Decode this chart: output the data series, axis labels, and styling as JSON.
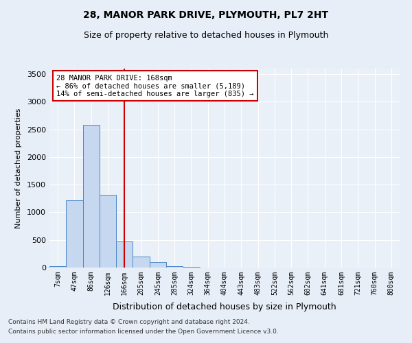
{
  "title1": "28, MANOR PARK DRIVE, PLYMOUTH, PL7 2HT",
  "title2": "Size of property relative to detached houses in Plymouth",
  "xlabel": "Distribution of detached houses by size in Plymouth",
  "ylabel": "Number of detached properties",
  "bar_labels": [
    "7sqm",
    "47sqm",
    "86sqm",
    "126sqm",
    "166sqm",
    "205sqm",
    "245sqm",
    "285sqm",
    "324sqm",
    "364sqm",
    "404sqm",
    "443sqm",
    "483sqm",
    "522sqm",
    "562sqm",
    "602sqm",
    "641sqm",
    "681sqm",
    "721sqm",
    "760sqm",
    "800sqm"
  ],
  "bar_heights": [
    20,
    1220,
    2580,
    1320,
    470,
    200,
    100,
    30,
    10,
    0,
    5,
    0,
    0,
    0,
    0,
    0,
    0,
    0,
    0,
    0,
    0
  ],
  "bar_color": "#c5d8f0",
  "bar_edge_color": "#4a86c8",
  "vline_x_index": 4,
  "vline_color": "#cc0000",
  "annotation_text": "28 MANOR PARK DRIVE: 168sqm\n← 86% of detached houses are smaller (5,189)\n14% of semi-detached houses are larger (835) →",
  "annotation_box_color": "#cc0000",
  "ylim": [
    0,
    3600
  ],
  "yticks": [
    0,
    500,
    1000,
    1500,
    2000,
    2500,
    3000,
    3500
  ],
  "footer1": "Contains HM Land Registry data © Crown copyright and database right 2024.",
  "footer2": "Contains public sector information licensed under the Open Government Licence v3.0.",
  "bg_color": "#e8eef8",
  "plot_bg_color": "#eaf0f8"
}
